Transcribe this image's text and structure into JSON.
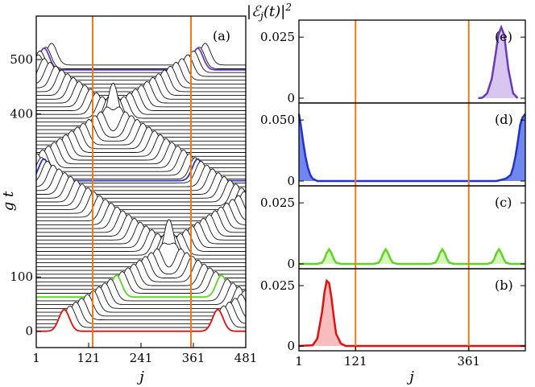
{
  "chart_data": [
    {
      "id": "a",
      "type": "line",
      "panel_label": "(a)",
      "xlabel": "j",
      "ylabel": "g t",
      "xlim": [
        1,
        481
      ],
      "xticks": [
        "1",
        "121",
        "241",
        "361",
        "481"
      ],
      "ylim": [
        -30,
        580
      ],
      "yticks": [
        "0",
        "100",
        "400",
        "500"
      ],
      "vlines_x": [
        121,
        361
      ],
      "line_spacing_gt": 7,
      "highlighted": [
        {
          "gt": 0,
          "color": "#e01010"
        },
        {
          "gt": 63,
          "color": "#5cd61f"
        },
        {
          "gt": 277,
          "color": "#2233c8"
        },
        {
          "gt": 481,
          "color": "#6a3ab5"
        }
      ]
    },
    {
      "id": "e",
      "type": "area",
      "panel_label": "(e)",
      "ylabel": "|ℰ_j(t)|²",
      "ymax": 0.03,
      "yticks": [
        "0",
        "0.025"
      ],
      "color": "#6a3ab5",
      "fill": "#c9b3ea",
      "x": [
        381,
        390,
        400,
        410,
        418,
        424,
        430,
        436,
        445,
        455,
        465
      ],
      "y": [
        0,
        0.0002,
        0.002,
        0.008,
        0.018,
        0.026,
        0.029,
        0.026,
        0.012,
        0.002,
        0
      ]
    },
    {
      "id": "d",
      "type": "area",
      "panel_label": "(d)",
      "ymax": 0.06,
      "yticks": [
        "0",
        "0.050"
      ],
      "color": "#2233c8",
      "fill": "#3f5fe8",
      "x": [
        1,
        5,
        10,
        15,
        20,
        25,
        30,
        40,
        420,
        440,
        450,
        455,
        460,
        465,
        470,
        475,
        481
      ],
      "y": [
        0.055,
        0.046,
        0.032,
        0.02,
        0.011,
        0.005,
        0.002,
        0,
        0,
        0.002,
        0.005,
        0.011,
        0.02,
        0.032,
        0.046,
        0.052,
        0.055
      ]
    },
    {
      "id": "c",
      "type": "area",
      "panel_label": "(c)",
      "ymax": 0.03,
      "yticks": [
        "0",
        "0.025"
      ],
      "color": "#5cd61f",
      "fill": "#c9f2a8",
      "x": [
        1,
        40,
        50,
        55,
        60,
        65,
        70,
        75,
        80,
        90,
        160,
        170,
        175,
        180,
        185,
        190,
        195,
        200,
        210,
        280,
        290,
        295,
        300,
        305,
        310,
        315,
        320,
        330,
        400,
        410,
        415,
        420,
        425,
        430,
        435,
        440,
        450,
        481
      ],
      "y": [
        0,
        0,
        0.0005,
        0.002,
        0.0045,
        0.006,
        0.0045,
        0.002,
        0.0005,
        0,
        0,
        0.0005,
        0.002,
        0.0045,
        0.006,
        0.0045,
        0.002,
        0.0005,
        0,
        0,
        0.0005,
        0.002,
        0.0045,
        0.006,
        0.0045,
        0.002,
        0.0005,
        0,
        0,
        0.0005,
        0.002,
        0.0045,
        0.006,
        0.0045,
        0.002,
        0.0005,
        0,
        0
      ]
    },
    {
      "id": "b",
      "type": "area",
      "panel_label": "(b)",
      "ymax": 0.03,
      "yticks": [
        "0",
        "0.025"
      ],
      "xlabel": "j",
      "xticks": [
        "1",
        "121",
        "361"
      ],
      "vlines_x": [
        121,
        361
      ],
      "color": "#e01010",
      "fill": "#f4a8a8",
      "x": [
        1,
        30,
        40,
        50,
        55,
        60,
        65,
        70,
        75,
        80,
        90,
        100,
        481
      ],
      "y": [
        0,
        0.0003,
        0.003,
        0.014,
        0.022,
        0.027,
        0.026,
        0.02,
        0.012,
        0.005,
        0.001,
        0,
        0
      ]
    }
  ]
}
